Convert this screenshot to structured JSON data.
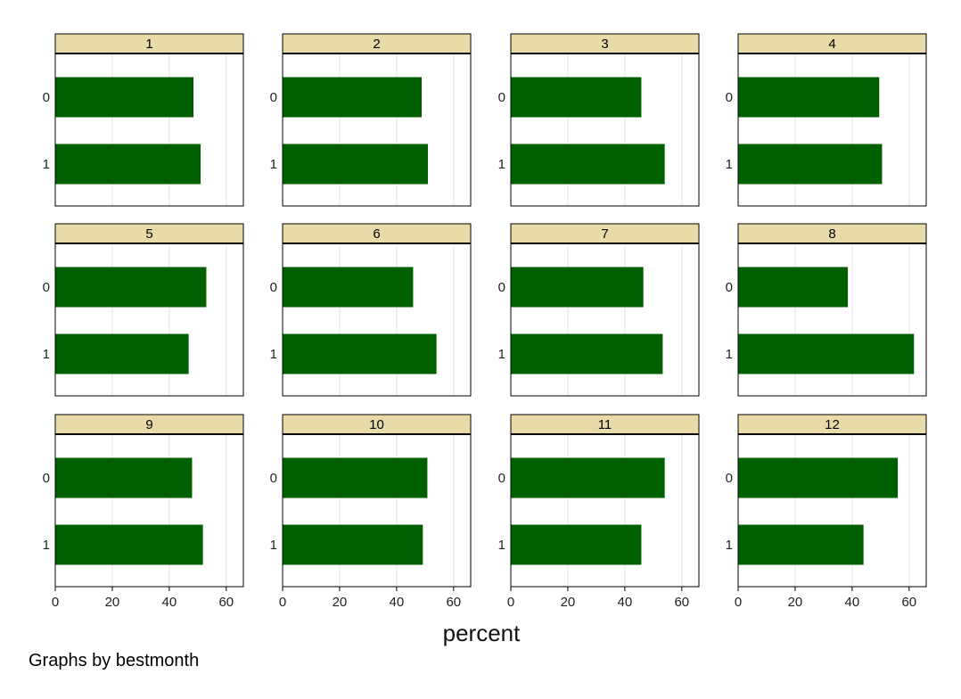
{
  "chart_data": {
    "type": "bar",
    "orientation": "horizontal",
    "xlabel": "percent",
    "note": "Graphs by bestmonth",
    "categories": [
      "0",
      "1"
    ],
    "x_ticks": [
      0,
      20,
      40,
      60
    ],
    "xlim": [
      0,
      66
    ],
    "grid": true,
    "bar_color": "#006000",
    "strip_color": "#e8dba8",
    "panels": [
      {
        "label": "1",
        "values": [
          48.5,
          51.0
        ]
      },
      {
        "label": "2",
        "values": [
          48.8,
          51.0
        ]
      },
      {
        "label": "3",
        "values": [
          45.8,
          54.0
        ]
      },
      {
        "label": "4",
        "values": [
          49.5,
          50.5
        ]
      },
      {
        "label": "5",
        "values": [
          53.0,
          46.8
        ]
      },
      {
        "label": "6",
        "values": [
          45.8,
          54.0
        ]
      },
      {
        "label": "7",
        "values": [
          46.5,
          53.3
        ]
      },
      {
        "label": "8",
        "values": [
          38.5,
          61.7
        ]
      },
      {
        "label": "9",
        "values": [
          48.0,
          51.8
        ]
      },
      {
        "label": "10",
        "values": [
          50.8,
          49.2
        ]
      },
      {
        "label": "11",
        "values": [
          54.0,
          45.8
        ]
      },
      {
        "label": "12",
        "values": [
          56.0,
          44.0
        ]
      }
    ]
  }
}
